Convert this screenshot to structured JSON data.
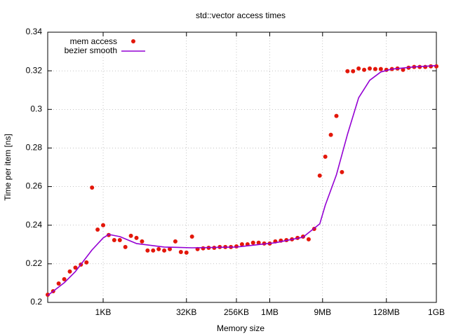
{
  "chart_data": {
    "type": "line",
    "title": "std::vector access times",
    "x_label": "Memory size",
    "y_label": "Time per item [ns]",
    "log_x": true,
    "grid": true,
    "legend": "top-left",
    "xlim": [
      102,
      1073741824
    ],
    "xticks": [
      {
        "value": 1024,
        "label": "1KB"
      },
      {
        "value": 32768,
        "label": "32KB"
      },
      {
        "value": 262144,
        "label": "256KB"
      },
      {
        "value": 1048576,
        "label": "1MB"
      },
      {
        "value": 9437184,
        "label": "9MB"
      },
      {
        "value": 134217728,
        "label": "128MB"
      },
      {
        "value": 1073741824,
        "label": "1GB"
      }
    ],
    "ylim": [
      0.2,
      0.34
    ],
    "yticks": [
      0.2,
      0.22,
      0.24,
      0.26,
      0.28,
      0.3,
      0.32,
      0.34
    ],
    "series": [
      {
        "name": "mem access",
        "type": "scatter",
        "color": "#e3170a",
        "x": [
          102,
          128,
          161,
          203,
          256,
          323,
          406,
          512,
          645,
          813,
          1024,
          1290,
          1625,
          2048,
          2580,
          3251,
          4096,
          5161,
          6502,
          8192,
          10321,
          13004,
          16384,
          20643,
          26008,
          32768,
          41285,
          52016,
          65536,
          82570,
          104032,
          131072,
          165140,
          208064,
          262144,
          330281,
          416128,
          524288,
          660561,
          832255,
          1048576,
          1321123,
          1664510,
          2097152,
          2642246,
          3329021,
          4194304,
          5284492,
          6658042,
          8388608,
          10568984,
          13316085,
          16777216,
          21137968,
          26632170,
          33554432,
          42275936,
          53264340,
          67108864,
          84551872,
          106528680,
          134217728,
          169103744,
          213057360,
          268435456,
          338207488,
          426114720,
          536870912,
          676414976,
          852229440,
          1073741824
        ],
        "values": [
          0.204,
          0.2058,
          0.2098,
          0.212,
          0.216,
          0.218,
          0.2196,
          0.2207,
          0.2595,
          0.2377,
          0.24,
          0.2349,
          0.2323,
          0.2323,
          0.2287,
          0.2345,
          0.2334,
          0.2316,
          0.2269,
          0.2269,
          0.2276,
          0.2269,
          0.2276,
          0.2316,
          0.2261,
          0.2258,
          0.2341,
          0.2276,
          0.228,
          0.2283,
          0.2283,
          0.2287,
          0.2287,
          0.2287,
          0.229,
          0.2301,
          0.2301,
          0.2309,
          0.2309,
          0.2305,
          0.2305,
          0.2316,
          0.232,
          0.2323,
          0.2327,
          0.2334,
          0.2341,
          0.2327,
          0.2381,
          0.2657,
          0.2755,
          0.2868,
          0.2966,
          0.2675,
          0.3198,
          0.3198,
          0.3212,
          0.3205,
          0.3212,
          0.3209,
          0.3209,
          0.3205,
          0.3209,
          0.3212,
          0.3205,
          0.3216,
          0.322,
          0.322,
          0.322,
          0.3223,
          0.3223
        ]
      },
      {
        "name": "bezier smooth",
        "type": "line",
        "color": "#9400d3",
        "x": [
          102,
          203,
          323,
          645,
          1024,
          1290,
          2048,
          4096,
          13004,
          41285,
          262144,
          1321123,
          4194304,
          8388608,
          10568984,
          16777216,
          26632170,
          42275936,
          67108864,
          106528680,
          169103744,
          426114720,
          1073741824
        ],
        "values": [
          0.2036,
          0.2102,
          0.216,
          0.2272,
          0.2334,
          0.2352,
          0.2341,
          0.2305,
          0.2287,
          0.2283,
          0.2287,
          0.2309,
          0.2338,
          0.2407,
          0.2504,
          0.2661,
          0.2871,
          0.306,
          0.3151,
          0.3194,
          0.3209,
          0.322,
          0.3227
        ]
      }
    ]
  }
}
